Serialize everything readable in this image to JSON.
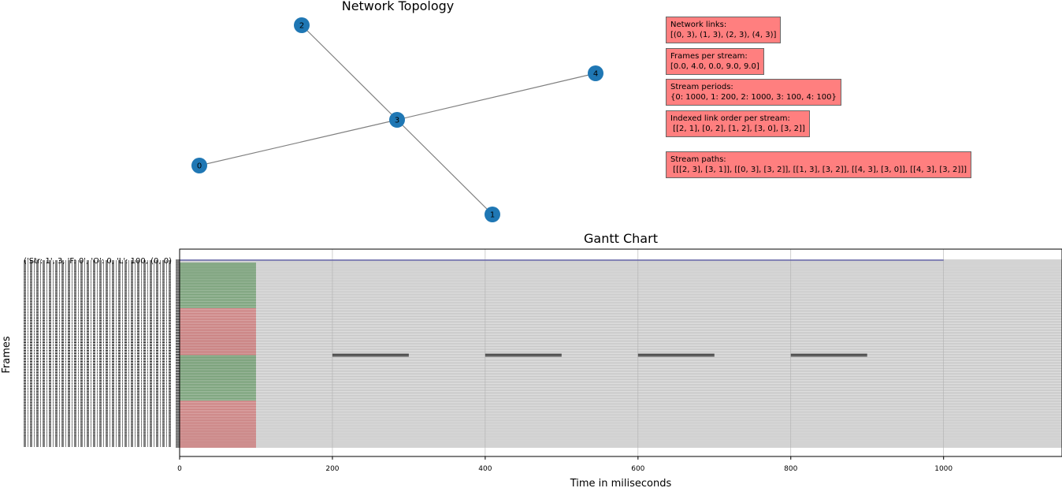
{
  "topology": {
    "title": "Network  Topology",
    "nodes": [
      "0",
      "1",
      "2",
      "3",
      "4"
    ],
    "edges": [
      [
        0,
        3
      ],
      [
        1,
        3
      ],
      [
        2,
        3
      ],
      [
        4,
        3
      ]
    ],
    "node_color": "#1f77b4",
    "edge_color": "#808080"
  },
  "info_boxes": [
    {
      "label": "Network links:",
      "value": "[(0, 3), (1, 3), (2, 3), (4, 3)]"
    },
    {
      "label": "Frames per stream:",
      "value": "[0.0, 4.0, 0.0, 9.0, 9.0]"
    },
    {
      "label": "Stream periods:",
      "value": "{0: 1000, 1: 200, 2: 1000, 3: 100, 4: 100}"
    },
    {
      "label": "Indexed link order per stream:",
      "value": " [[2, 1], [0, 2], [1, 2], [3, 0], [3, 2]]"
    },
    {
      "label": "Stream paths:",
      "value": " [[[2, 3], [3, 1]], [[0, 3], [3, 2]], [[1, 3], [3, 2]], [[4, 3], [3, 0]], [[4, 3], [3, 2]]]"
    }
  ],
  "chart_data": {
    "type": "bar",
    "title": "Gantt Chart",
    "xlabel": "Time in miliseconds",
    "ylabel": "Frames",
    "xlim": [
      0,
      1155
    ],
    "xticks": [
      0,
      200,
      400,
      600,
      800,
      1000
    ],
    "grid": true,
    "first_row_label": "('Str: 1', 3, 'F: 0', 'O': 0, 'L': 100, (0, 0)",
    "row_count": 120,
    "colors": {
      "background_row": "#c0c0c0",
      "green": "#6f9a6f",
      "red": "#c87878",
      "blue": "#6a6aaa",
      "dark": "#3a3a3a"
    },
    "series": [
      {
        "kind": "background",
        "rows": [
          0,
          119
        ],
        "start": 0,
        "end": 1155
      },
      {
        "kind": "blue",
        "rows": [
          0,
          0
        ],
        "start": 0,
        "end": 1000
      },
      {
        "kind": "green",
        "rows": [
          2,
          30
        ],
        "start": 0,
        "end": 100
      },
      {
        "kind": "red",
        "rows": [
          31,
          60
        ],
        "start": 0,
        "end": 100
      },
      {
        "kind": "green",
        "rows": [
          61,
          89
        ],
        "start": 0,
        "end": 100
      },
      {
        "kind": "red",
        "rows": [
          90,
          119
        ],
        "start": 0,
        "end": 100
      },
      {
        "kind": "dark",
        "rows": [
          60,
          61
        ],
        "start": 200,
        "end": 300
      },
      {
        "kind": "dark",
        "rows": [
          60,
          61
        ],
        "start": 400,
        "end": 500
      },
      {
        "kind": "dark",
        "rows": [
          60,
          61
        ],
        "start": 600,
        "end": 700
      },
      {
        "kind": "dark",
        "rows": [
          60,
          61
        ],
        "start": 800,
        "end": 900
      }
    ]
  }
}
